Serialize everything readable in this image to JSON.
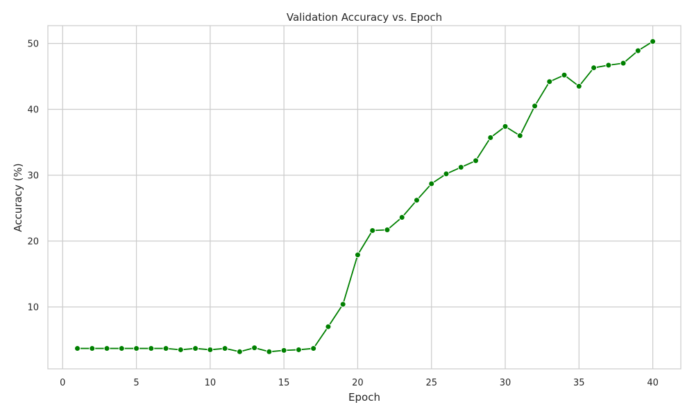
{
  "chart_data": {
    "type": "line",
    "title": "Validation Accuracy vs. Epoch",
    "xlabel": "Epoch",
    "ylabel": "Accuracy (%)",
    "xlim": [
      -1,
      41.9
    ],
    "ylim": [
      0.6,
      52.7
    ],
    "xticks": [
      0,
      5,
      10,
      15,
      20,
      25,
      30,
      35,
      40
    ],
    "yticks": [
      10,
      20,
      30,
      40,
      50
    ],
    "grid": true,
    "colors": {
      "line": "#008000",
      "marker": "#008000",
      "grid": "#cccccc",
      "frame": "#cccccc"
    },
    "series": [
      {
        "x": [
          1,
          2,
          3,
          4,
          5,
          6,
          7,
          8,
          9,
          10,
          11,
          12,
          13,
          14,
          15,
          16,
          17,
          18,
          19,
          20,
          21,
          22,
          23,
          24,
          25,
          26,
          27,
          28,
          29,
          30,
          31,
          32,
          33,
          34,
          35,
          36,
          37,
          38,
          39,
          40
        ],
        "values": [
          3.7,
          3.7,
          3.7,
          3.7,
          3.7,
          3.7,
          3.7,
          3.5,
          3.7,
          3.5,
          3.7,
          3.2,
          3.8,
          3.2,
          3.4,
          3.5,
          3.7,
          7.0,
          10.4,
          17.9,
          21.6,
          21.7,
          23.6,
          26.2,
          28.7,
          30.2,
          31.2,
          32.2,
          35.7,
          37.4,
          36.0,
          40.5,
          44.2,
          45.2,
          43.5,
          46.3,
          46.7,
          47.0,
          48.9,
          50.3
        ]
      }
    ]
  }
}
